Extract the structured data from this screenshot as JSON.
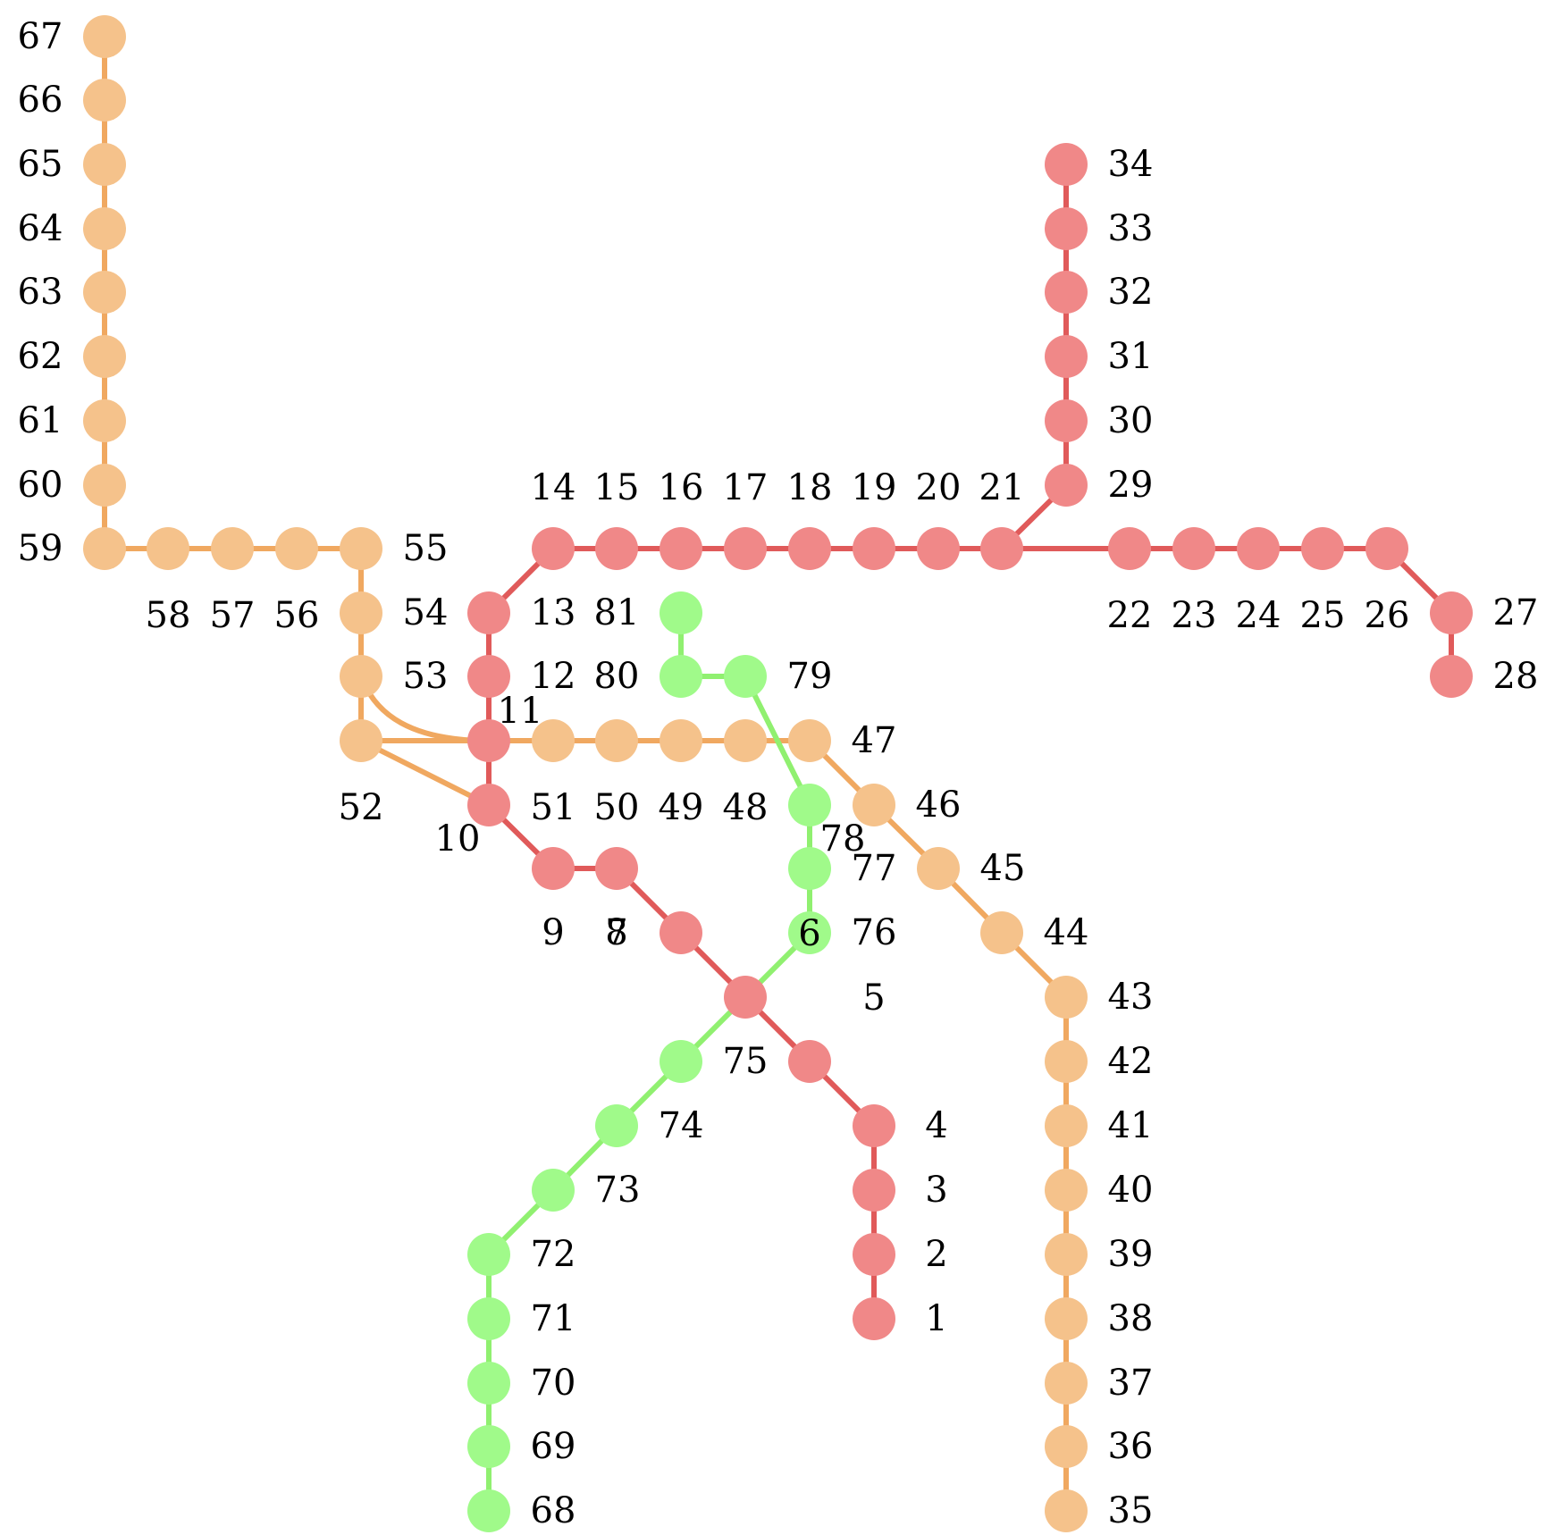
{
  "colors": {
    "red_line": "#e05a5a",
    "red_node": "#f08888",
    "orange_line": "#f0a860",
    "orange_node": "#f5c28b",
    "green_line": "#90f070",
    "green_node": "#a0fa8a"
  },
  "lines": [
    {
      "name": "red",
      "stations": [
        "1",
        "2",
        "3",
        "4",
        "5",
        "6",
        "7",
        "8",
        "9",
        "10",
        "11",
        "12",
        "13",
        "14",
        "15",
        "16",
        "17",
        "18",
        "19",
        "20",
        "21",
        "22",
        "23",
        "24",
        "25",
        "26",
        "27",
        "28"
      ]
    },
    {
      "name": "red-branch",
      "stations": [
        "21",
        "29",
        "30",
        "31",
        "32",
        "33",
        "34"
      ]
    },
    {
      "name": "orange",
      "stations": [
        "35",
        "36",
        "37",
        "38",
        "39",
        "40",
        "41",
        "42",
        "43",
        "44",
        "45",
        "46",
        "47",
        "48",
        "49",
        "50",
        "51",
        "52",
        "53",
        "54",
        "55",
        "56",
        "57",
        "58",
        "59",
        "60",
        "61",
        "62",
        "63",
        "64",
        "65",
        "66",
        "67"
      ]
    },
    {
      "name": "green",
      "stations": [
        "68",
        "69",
        "70",
        "71",
        "72",
        "73",
        "74",
        "75",
        "76",
        "77",
        "78",
        "79",
        "80",
        "81"
      ]
    }
  ],
  "stations": [
    {
      "id": "1",
      "label": "1",
      "line": "red"
    },
    {
      "id": "2",
      "label": "2",
      "line": "red"
    },
    {
      "id": "3",
      "label": "3",
      "line": "red"
    },
    {
      "id": "4",
      "label": "4",
      "line": "red"
    },
    {
      "id": "5",
      "label": "5",
      "line": "red"
    },
    {
      "id": "6",
      "label": "6",
      "line": "red"
    },
    {
      "id": "7",
      "label": "7",
      "line": "red"
    },
    {
      "id": "8",
      "label": "8",
      "line": "red"
    },
    {
      "id": "9",
      "label": "9",
      "line": "red"
    },
    {
      "id": "10",
      "label": "10",
      "line": "red"
    },
    {
      "id": "11",
      "label": "11",
      "line": "red"
    },
    {
      "id": "12",
      "label": "12",
      "line": "red"
    },
    {
      "id": "13",
      "label": "13",
      "line": "red"
    },
    {
      "id": "14",
      "label": "14",
      "line": "red"
    },
    {
      "id": "15",
      "label": "15",
      "line": "red"
    },
    {
      "id": "16",
      "label": "16",
      "line": "red"
    },
    {
      "id": "17",
      "label": "17",
      "line": "red"
    },
    {
      "id": "18",
      "label": "18",
      "line": "red"
    },
    {
      "id": "19",
      "label": "19",
      "line": "red"
    },
    {
      "id": "20",
      "label": "20",
      "line": "red"
    },
    {
      "id": "21",
      "label": "21",
      "line": "red"
    },
    {
      "id": "22",
      "label": "22",
      "line": "red"
    },
    {
      "id": "23",
      "label": "23",
      "line": "red"
    },
    {
      "id": "24",
      "label": "24",
      "line": "red"
    },
    {
      "id": "25",
      "label": "25",
      "line": "red"
    },
    {
      "id": "26",
      "label": "26",
      "line": "red"
    },
    {
      "id": "27",
      "label": "27",
      "line": "red"
    },
    {
      "id": "28",
      "label": "28",
      "line": "red"
    },
    {
      "id": "29",
      "label": "29",
      "line": "red"
    },
    {
      "id": "30",
      "label": "30",
      "line": "red"
    },
    {
      "id": "31",
      "label": "31",
      "line": "red"
    },
    {
      "id": "32",
      "label": "32",
      "line": "red"
    },
    {
      "id": "33",
      "label": "33",
      "line": "red"
    },
    {
      "id": "34",
      "label": "34",
      "line": "red"
    },
    {
      "id": "35",
      "label": "35",
      "line": "orange"
    },
    {
      "id": "36",
      "label": "36",
      "line": "orange"
    },
    {
      "id": "37",
      "label": "37",
      "line": "orange"
    },
    {
      "id": "38",
      "label": "38",
      "line": "orange"
    },
    {
      "id": "39",
      "label": "39",
      "line": "orange"
    },
    {
      "id": "40",
      "label": "40",
      "line": "orange"
    },
    {
      "id": "41",
      "label": "41",
      "line": "orange"
    },
    {
      "id": "42",
      "label": "42",
      "line": "orange"
    },
    {
      "id": "43",
      "label": "43",
      "line": "orange"
    },
    {
      "id": "44",
      "label": "44",
      "line": "orange"
    },
    {
      "id": "45",
      "label": "45",
      "line": "orange"
    },
    {
      "id": "46",
      "label": "46",
      "line": "orange"
    },
    {
      "id": "47",
      "label": "47",
      "line": "orange"
    },
    {
      "id": "48",
      "label": "48",
      "line": "orange"
    },
    {
      "id": "49",
      "label": "49",
      "line": "orange"
    },
    {
      "id": "50",
      "label": "50",
      "line": "orange"
    },
    {
      "id": "51",
      "label": "51",
      "line": "orange"
    },
    {
      "id": "52",
      "label": "52",
      "line": "orange"
    },
    {
      "id": "53",
      "label": "53",
      "line": "orange"
    },
    {
      "id": "54",
      "label": "54",
      "line": "orange"
    },
    {
      "id": "55",
      "label": "55",
      "line": "orange"
    },
    {
      "id": "56",
      "label": "56",
      "line": "orange"
    },
    {
      "id": "57",
      "label": "57",
      "line": "orange"
    },
    {
      "id": "58",
      "label": "58",
      "line": "orange"
    },
    {
      "id": "59",
      "label": "59",
      "line": "orange"
    },
    {
      "id": "60",
      "label": "60",
      "line": "orange"
    },
    {
      "id": "61",
      "label": "61",
      "line": "orange"
    },
    {
      "id": "62",
      "label": "62",
      "line": "orange"
    },
    {
      "id": "63",
      "label": "63",
      "line": "orange"
    },
    {
      "id": "64",
      "label": "64",
      "line": "orange"
    },
    {
      "id": "65",
      "label": "65",
      "line": "orange"
    },
    {
      "id": "66",
      "label": "66",
      "line": "orange"
    },
    {
      "id": "67",
      "label": "67",
      "line": "orange"
    },
    {
      "id": "68",
      "label": "68",
      "line": "green"
    },
    {
      "id": "69",
      "label": "69",
      "line": "green"
    },
    {
      "id": "70",
      "label": "70",
      "line": "green"
    },
    {
      "id": "71",
      "label": "71",
      "line": "green"
    },
    {
      "id": "72",
      "label": "72",
      "line": "green"
    },
    {
      "id": "73",
      "label": "73",
      "line": "green"
    },
    {
      "id": "74",
      "label": "74",
      "line": "green"
    },
    {
      "id": "75",
      "label": "75",
      "line": "green"
    },
    {
      "id": "76",
      "label": "76",
      "line": "green"
    },
    {
      "id": "77",
      "label": "77",
      "line": "green"
    },
    {
      "id": "78",
      "label": "78",
      "line": "green"
    },
    {
      "id": "79",
      "label": "79",
      "line": "green"
    },
    {
      "id": "80",
      "label": "80",
      "line": "green"
    },
    {
      "id": "81",
      "label": "81",
      "line": "green"
    }
  ]
}
